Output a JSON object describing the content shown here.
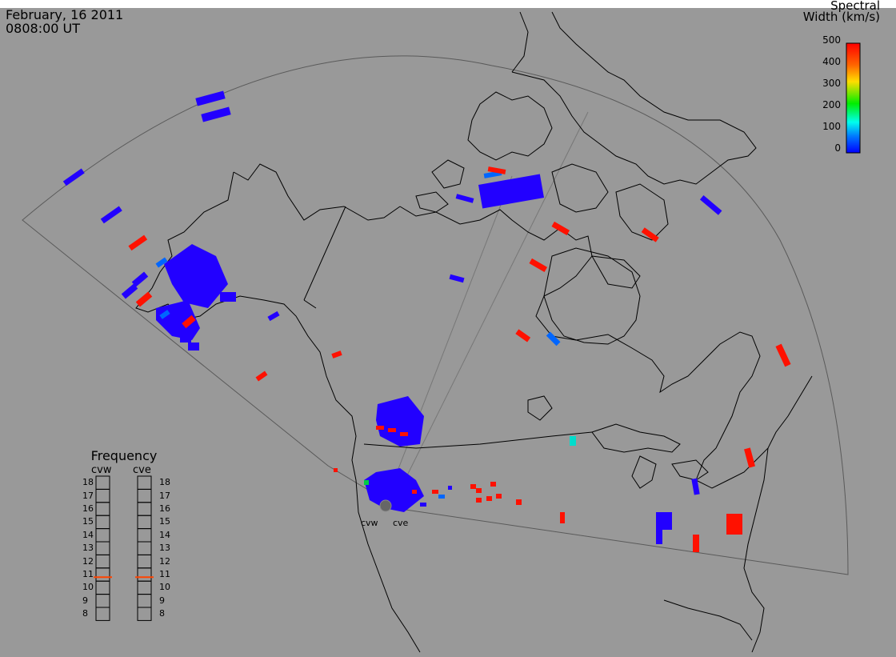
{
  "header": {
    "date": "February, 16 2011",
    "time": "0808:00 UT"
  },
  "colorbar": {
    "title_line1": "Spectral",
    "title_line2": "Width (km/s)",
    "ticks": [
      "500",
      "400",
      "300",
      "200",
      "100",
      "0"
    ],
    "colors": [
      "#ff0000",
      "#ff9900",
      "#ffff00",
      "#00ee00",
      "#00ffee",
      "#0066ff",
      "#0000ff"
    ]
  },
  "frequency_panel": {
    "title": "Frequency",
    "radar_left": "cvw",
    "radar_right": "cve",
    "labels": [
      "18",
      "17",
      "16",
      "15",
      "14",
      "13",
      "12",
      "11",
      "10",
      "9",
      "8"
    ],
    "cvw_mhz": 10.8,
    "cve_mhz": 10.8,
    "indicator_color": "#ff4400"
  },
  "radars": {
    "west": "cvw",
    "east": "cve"
  },
  "map": {
    "background": "#999999",
    "coast_color": "#000000",
    "fov_color": "#555555"
  }
}
